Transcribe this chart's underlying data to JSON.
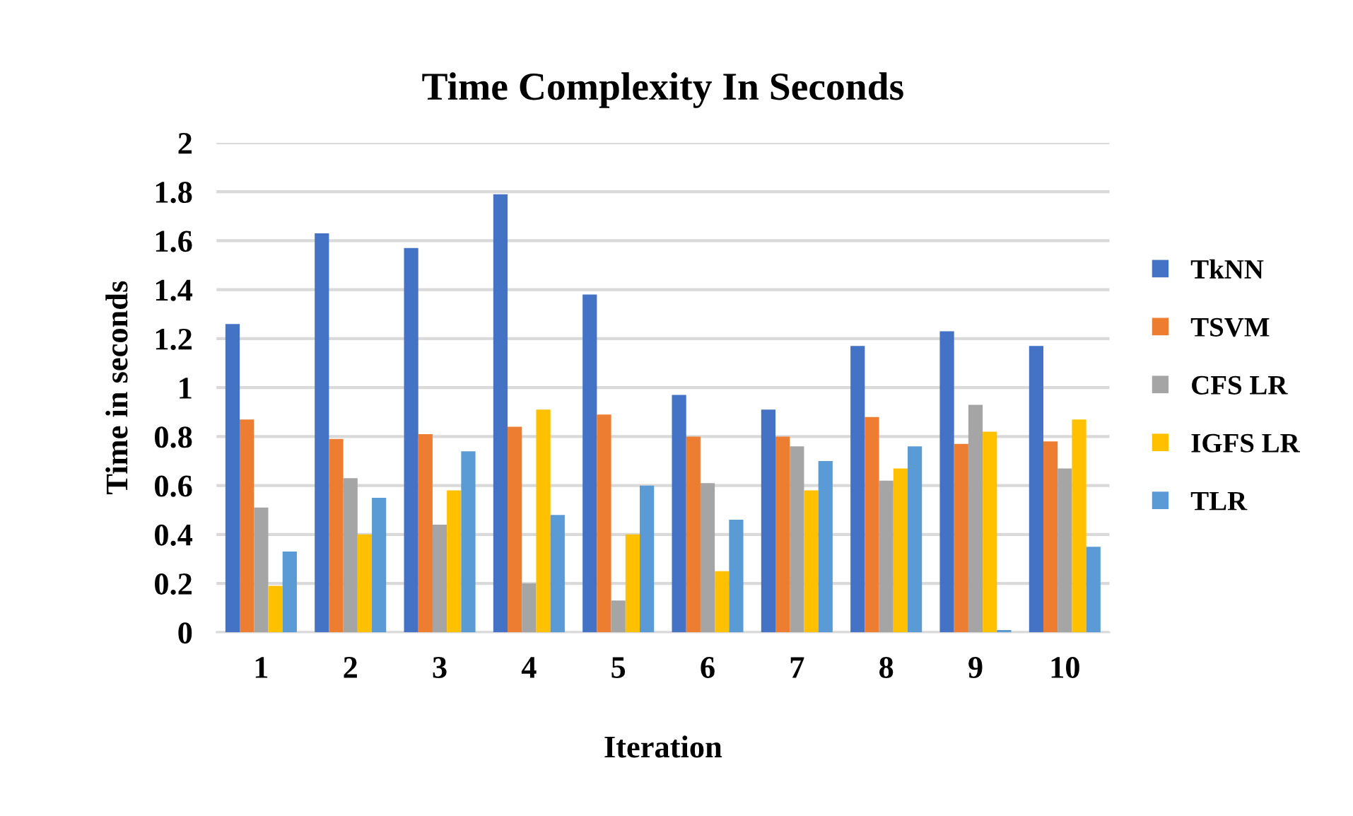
{
  "chart_data": {
    "type": "bar",
    "title": "Time Complexity In Seconds",
    "xlabel": "Iteration",
    "ylabel": "Time in seconds",
    "categories": [
      "1",
      "2",
      "3",
      "4",
      "5",
      "6",
      "7",
      "8",
      "9",
      "10"
    ],
    "series": [
      {
        "name": "TkNN",
        "color": "#4472c4",
        "values": [
          1.26,
          1.63,
          1.57,
          1.79,
          1.38,
          0.97,
          0.91,
          1.17,
          1.23,
          1.17
        ]
      },
      {
        "name": "TSVM",
        "color": "#ed7d31",
        "values": [
          0.87,
          0.79,
          0.81,
          0.84,
          0.89,
          0.8,
          0.8,
          0.88,
          0.77,
          0.78
        ]
      },
      {
        "name": "CFS LR",
        "color": "#a5a5a5",
        "values": [
          0.51,
          0.63,
          0.44,
          0.2,
          0.13,
          0.61,
          0.76,
          0.62,
          0.93,
          0.67
        ]
      },
      {
        "name": "IGFS LR",
        "color": "#ffc000",
        "values": [
          0.19,
          0.4,
          0.58,
          0.91,
          0.4,
          0.25,
          0.58,
          0.67,
          0.82,
          0.87
        ]
      },
      {
        "name": "TLR",
        "color": "#5b9bd5",
        "values": [
          0.33,
          0.55,
          0.74,
          0.48,
          0.6,
          0.46,
          0.7,
          0.76,
          0.01,
          0.35
        ]
      }
    ],
    "ylim": [
      0,
      2
    ],
    "yticks": [
      0,
      0.2,
      0.4,
      0.6,
      0.8,
      1,
      1.2,
      1.4,
      1.6,
      1.8,
      2
    ],
    "grid": "y",
    "legend": "right"
  }
}
